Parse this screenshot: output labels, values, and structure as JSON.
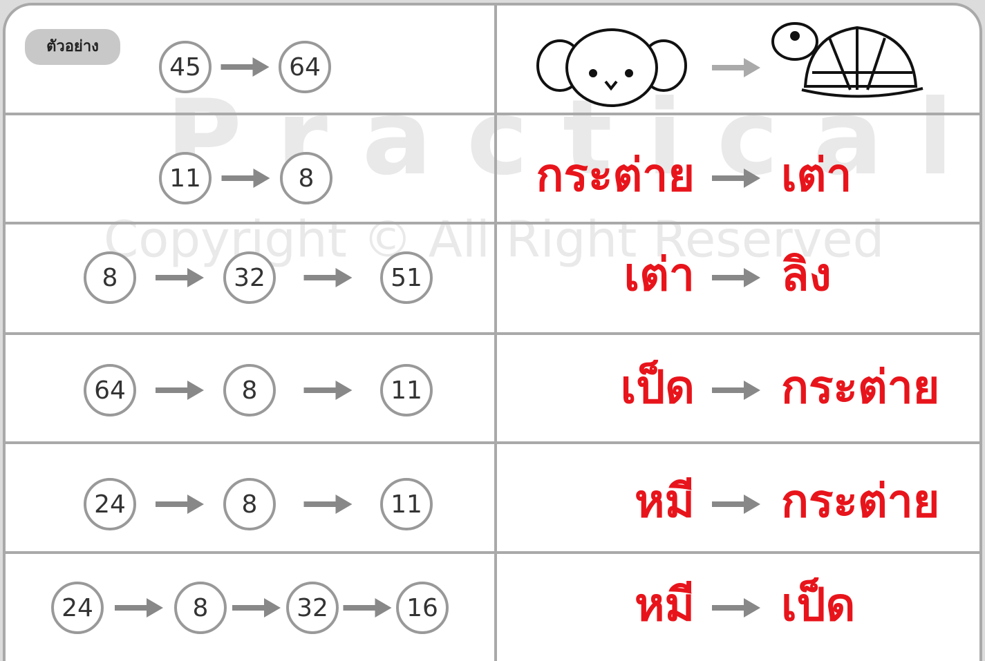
{
  "example_label": "ตัวอย่าง",
  "watermark": {
    "line1": "Practical",
    "line2": "Copyright © All Right Reserved"
  },
  "rows": [
    {
      "numbers": [
        45,
        64
      ]
    },
    {
      "numbers": [
        11,
        8
      ],
      "from": "กระต่าย",
      "to": "เต่า"
    },
    {
      "numbers": [
        8,
        32,
        51
      ],
      "from": "เต่า",
      "to": "ลิง"
    },
    {
      "numbers": [
        64,
        8,
        11
      ],
      "from": "เป็ด",
      "to": "กระต่าย"
    },
    {
      "numbers": [
        24,
        8,
        11
      ],
      "from": "หมี",
      "to": "กระต่าย"
    },
    {
      "numbers": [
        24,
        8,
        32,
        16
      ],
      "from": "หมี",
      "to": "เป็ด"
    }
  ]
}
